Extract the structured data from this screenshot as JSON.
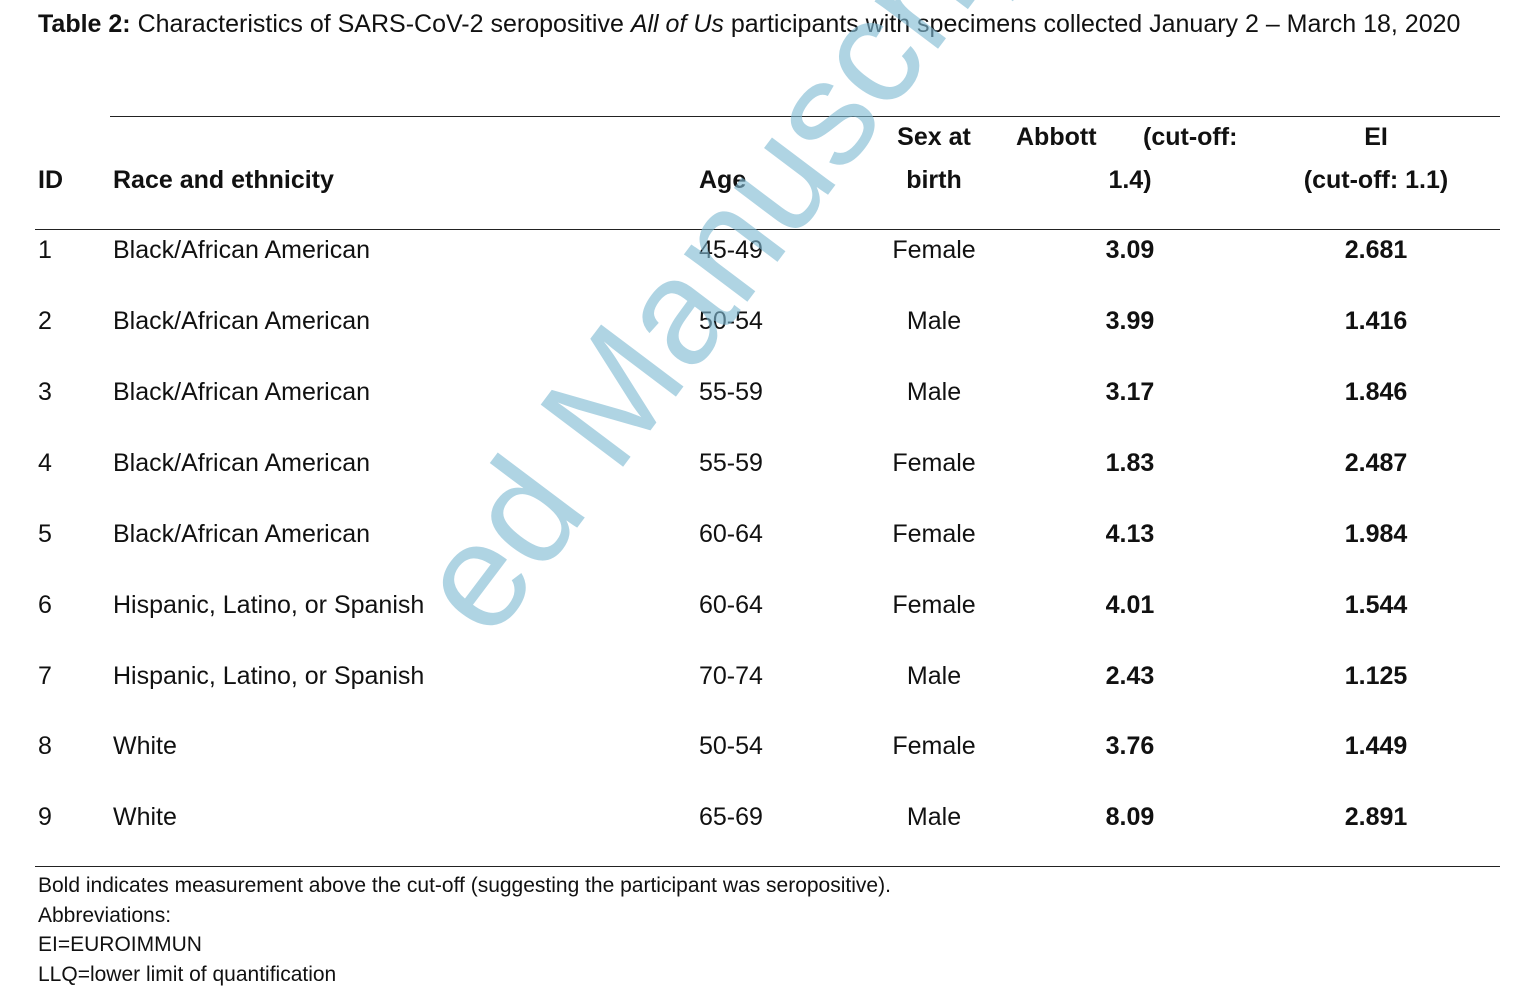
{
  "caption": {
    "label": "Table 2:",
    "text_before": " Characteristics of SARS-CoV-2 seropositive ",
    "italic": "All of Us",
    "text_after": " participants with specimens collected January 2 – March 18, 2020"
  },
  "table": {
    "headers": {
      "id": "ID",
      "race": "Race and ethnicity",
      "age": "Age",
      "sex_line1": "Sex at",
      "sex_line2": "birth",
      "abbott_line1_a": "Abbott",
      "abbott_line1_b": "(cut-off:",
      "abbott_line2": "1.4)",
      "ei_line1": "EI",
      "ei_line2": "(cut-off: 1.1)"
    },
    "rows": [
      {
        "id": "1",
        "race": "Black/African American",
        "age": "45-49",
        "sex": "Female",
        "abbott": "3.09",
        "ei": "2.681"
      },
      {
        "id": "2",
        "race": "Black/African American",
        "age": "50-54",
        "sex": "Male",
        "abbott": "3.99",
        "ei": "1.416"
      },
      {
        "id": "3",
        "race": "Black/African American",
        "age": "55-59",
        "sex": "Male",
        "abbott": "3.17",
        "ei": "1.846"
      },
      {
        "id": "4",
        "race": "Black/African American",
        "age": "55-59",
        "sex": "Female",
        "abbott": "1.83",
        "ei": "2.487"
      },
      {
        "id": "5",
        "race": "Black/African American",
        "age": "60-64",
        "sex": "Female",
        "abbott": "4.13",
        "ei": "1.984"
      },
      {
        "id": "6",
        "race": "Hispanic, Latino, or Spanish",
        "age": "60-64",
        "sex": "Female",
        "abbott": "4.01",
        "ei": "1.544"
      },
      {
        "id": "7",
        "race": "Hispanic, Latino, or Spanish",
        "age": "70-74",
        "sex": "Male",
        "abbott": "2.43",
        "ei": "1.125"
      },
      {
        "id": "8",
        "race": "White",
        "age": "50-54",
        "sex": "Female",
        "abbott": "3.76",
        "ei": "1.449"
      },
      {
        "id": "9",
        "race": "White",
        "age": "65-69",
        "sex": "Male",
        "abbott": "8.09",
        "ei": "2.891"
      }
    ]
  },
  "notes": [
    "Bold indicates measurement above the cut-off (suggesting the participant was seropositive).",
    "Abbreviations:",
    "EI=EUROIMMUN",
    "LLQ=lower limit of quantification"
  ],
  "watermark": {
    "text": "ed Manuscript",
    "color": "#7fbad3"
  }
}
